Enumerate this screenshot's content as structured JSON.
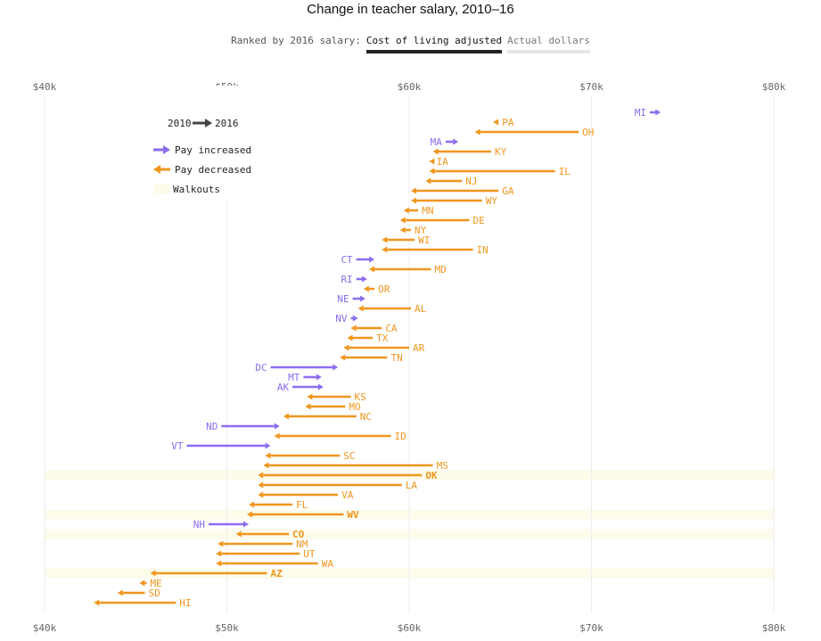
{
  "header": {
    "title": "Change in teacher salary, 2010–16",
    "ranked_label": "Ranked by 2016 salary:",
    "toggle_options": [
      "Cost of living adjusted",
      "Actual dollars"
    ],
    "active_option": "Cost of living adjusted"
  },
  "legend": {
    "from_label": "2010",
    "to_label": "2016",
    "increase_label": "Pay increased",
    "decrease_label": "Pay decreased",
    "walkout_label": "Walkouts"
  },
  "colors": {
    "increase": "#8b6df0",
    "decrease": "#f0961e",
    "walkout_band": "#fdfbea",
    "grid": "#eeeeee",
    "axis_text": "#666666"
  },
  "chart_data": {
    "type": "arrow-dot",
    "title": "Change in teacher salary, 2010–16",
    "x_ticks": [
      "$40k",
      "$50k",
      "$60k",
      "$70k",
      "$80k"
    ],
    "x_tick_values": [
      40000,
      50000,
      60000,
      70000,
      80000
    ],
    "xlim": [
      40000,
      80000
    ],
    "grid": true,
    "series": [
      {
        "state": "MI",
        "from": 73200,
        "to": 73800,
        "walkout": false
      },
      {
        "state": "PA",
        "from": 64900,
        "to": 64600,
        "walkout": false
      },
      {
        "state": "OH",
        "from": 69300,
        "to": 63600,
        "walkout": false
      },
      {
        "state": "MA",
        "from": 62000,
        "to": 62700,
        "walkout": false
      },
      {
        "state": "KY",
        "from": 64500,
        "to": 61300,
        "walkout": false
      },
      {
        "state": "IA",
        "from": 61300,
        "to": 61100,
        "walkout": false
      },
      {
        "state": "IL",
        "from": 68000,
        "to": 61100,
        "walkout": false
      },
      {
        "state": "NJ",
        "from": 62900,
        "to": 60900,
        "walkout": false
      },
      {
        "state": "GA",
        "from": 64900,
        "to": 60100,
        "walkout": false
      },
      {
        "state": "WY",
        "from": 64000,
        "to": 60100,
        "walkout": false
      },
      {
        "state": "MN",
        "from": 60500,
        "to": 59700,
        "walkout": false
      },
      {
        "state": "DE",
        "from": 63300,
        "to": 59500,
        "walkout": false
      },
      {
        "state": "NY",
        "from": 60100,
        "to": 59500,
        "walkout": false
      },
      {
        "state": "WI",
        "from": 60300,
        "to": 58500,
        "walkout": false
      },
      {
        "state": "IN",
        "from": 63500,
        "to": 58500,
        "walkout": false
      },
      {
        "state": "CT",
        "from": 57100,
        "to": 58100,
        "walkout": false
      },
      {
        "state": "MD",
        "from": 61200,
        "to": 57800,
        "walkout": false
      },
      {
        "state": "RI",
        "from": 57100,
        "to": 57700,
        "walkout": false
      },
      {
        "state": "OR",
        "from": 58100,
        "to": 57500,
        "walkout": false
      },
      {
        "state": "NE",
        "from": 56900,
        "to": 57600,
        "walkout": false
      },
      {
        "state": "AL",
        "from": 60100,
        "to": 57200,
        "walkout": false
      },
      {
        "state": "NV",
        "from": 56800,
        "to": 57200,
        "walkout": false
      },
      {
        "state": "CA",
        "from": 58500,
        "to": 56800,
        "walkout": false
      },
      {
        "state": "TX",
        "from": 58000,
        "to": 56600,
        "walkout": false
      },
      {
        "state": "AR",
        "from": 60000,
        "to": 56400,
        "walkout": false
      },
      {
        "state": "TN",
        "from": 58800,
        "to": 56200,
        "walkout": false
      },
      {
        "state": "DC",
        "from": 52400,
        "to": 56100,
        "walkout": false
      },
      {
        "state": "MT",
        "from": 54200,
        "to": 55200,
        "walkout": false
      },
      {
        "state": "AK",
        "from": 53600,
        "to": 55300,
        "walkout": false
      },
      {
        "state": "KS",
        "from": 56800,
        "to": 54400,
        "walkout": false
      },
      {
        "state": "MO",
        "from": 56500,
        "to": 54300,
        "walkout": false
      },
      {
        "state": "NC",
        "from": 57100,
        "to": 53100,
        "walkout": false
      },
      {
        "state": "ND",
        "from": 49700,
        "to": 52900,
        "walkout": false
      },
      {
        "state": "ID",
        "from": 59000,
        "to": 52600,
        "walkout": false
      },
      {
        "state": "VT",
        "from": 47800,
        "to": 52400,
        "walkout": false
      },
      {
        "state": "SC",
        "from": 56200,
        "to": 52100,
        "walkout": false
      },
      {
        "state": "MS",
        "from": 61300,
        "to": 52000,
        "walkout": false
      },
      {
        "state": "OK",
        "from": 60700,
        "to": 51700,
        "walkout": true
      },
      {
        "state": "LA",
        "from": 59600,
        "to": 51700,
        "walkout": false
      },
      {
        "state": "VA",
        "from": 56100,
        "to": 51700,
        "walkout": false
      },
      {
        "state": "FL",
        "from": 53600,
        "to": 51200,
        "walkout": false
      },
      {
        "state": "WV",
        "from": 56400,
        "to": 51100,
        "walkout": true
      },
      {
        "state": "NH",
        "from": 49000,
        "to": 51200,
        "walkout": false
      },
      {
        "state": "CO",
        "from": 53400,
        "to": 50500,
        "walkout": true
      },
      {
        "state": "NM",
        "from": 53600,
        "to": 49500,
        "walkout": false
      },
      {
        "state": "UT",
        "from": 54000,
        "to": 49400,
        "walkout": false
      },
      {
        "state": "WA",
        "from": 55000,
        "to": 49400,
        "walkout": false
      },
      {
        "state": "AZ",
        "from": 52200,
        "to": 45800,
        "walkout": true
      },
      {
        "state": "ME",
        "from": 45600,
        "to": 45200,
        "walkout": false
      },
      {
        "state": "SD",
        "from": 45500,
        "to": 44000,
        "walkout": false
      },
      {
        "state": "HI",
        "from": 47200,
        "to": 42700,
        "walkout": false
      }
    ]
  }
}
